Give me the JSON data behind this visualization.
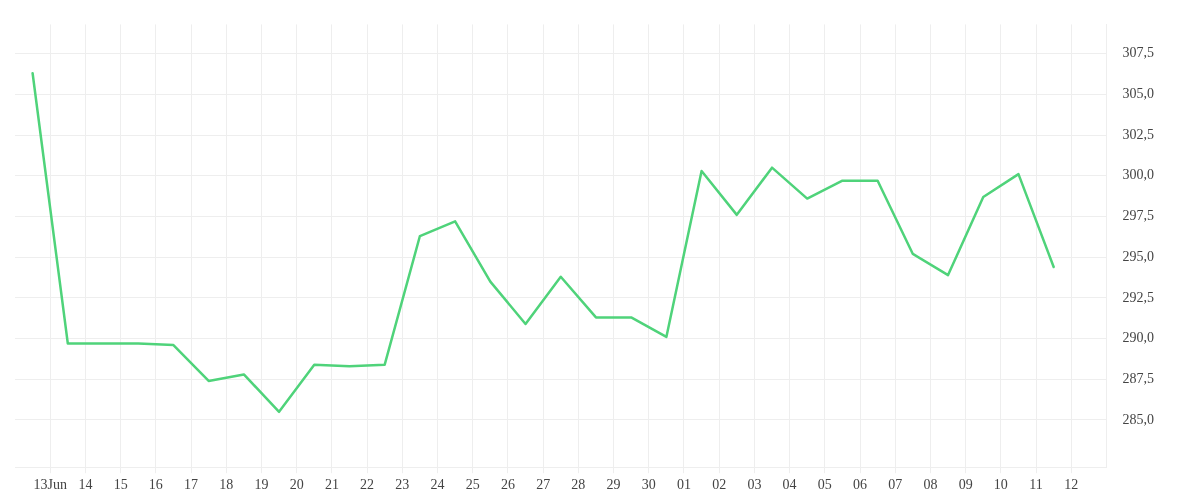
{
  "chart_data": {
    "type": "line",
    "x": [
      "--06-12T12:00",
      "--06-13T12:00",
      "--06-14T12:00",
      "--06-15T12:00",
      "--06-16T12:00",
      "--06-17T12:00",
      "--06-18T12:00",
      "--06-19T12:00",
      "--06-20T12:00",
      "--06-21T12:00",
      "--06-22T12:00",
      "--06-23T12:00",
      "--06-24T12:00",
      "--06-25T12:00",
      "--06-26T12:00",
      "--06-27T12:00",
      "--06-28T12:00",
      "--06-29T12:00",
      "--06-30T12:00",
      "--07-01T12:00",
      "--07-02T12:00",
      "--07-03T12:00",
      "--07-04T12:00",
      "--07-05T12:00",
      "--07-06T12:00",
      "--07-07T12:00",
      "--07-08T12:00",
      "--07-09T12:00",
      "--07-10T12:00",
      "--07-11T12:00"
    ],
    "series": [
      {
        "color": "#4fd37a",
        "values": [
          306.3,
          289.7,
          289.7,
          289.7,
          289.6,
          287.4,
          287.8,
          285.5,
          288.4,
          288.3,
          288.4,
          296.3,
          297.2,
          293.5,
          290.9,
          293.8,
          291.3,
          291.3,
          290.1,
          300.3,
          297.6,
          300.5,
          298.6,
          299.7,
          299.7,
          295.2,
          293.9,
          298.7,
          300.1,
          294.4
        ]
      }
    ],
    "xlim": [
      "--06-12",
      "--07-13"
    ],
    "xticks": [
      {
        "value": "--06-13",
        "label": "13Jun"
      },
      {
        "value": "--06-14",
        "label": "14"
      },
      {
        "value": "--06-15",
        "label": "15"
      },
      {
        "value": "--06-16",
        "label": "16"
      },
      {
        "value": "--06-17",
        "label": "17"
      },
      {
        "value": "--06-18",
        "label": "18"
      },
      {
        "value": "--06-19",
        "label": "19"
      },
      {
        "value": "--06-20",
        "label": "20"
      },
      {
        "value": "--06-21",
        "label": "21"
      },
      {
        "value": "--06-22",
        "label": "22"
      },
      {
        "value": "--06-23",
        "label": "23"
      },
      {
        "value": "--06-24",
        "label": "24"
      },
      {
        "value": "--06-25",
        "label": "25"
      },
      {
        "value": "--06-26",
        "label": "26"
      },
      {
        "value": "--06-27",
        "label": "27"
      },
      {
        "value": "--06-28",
        "label": "28"
      },
      {
        "value": "--06-29",
        "label": "29"
      },
      {
        "value": "--06-30",
        "label": "30"
      },
      {
        "value": "--07-01",
        "label": "01"
      },
      {
        "value": "--07-02",
        "label": "02"
      },
      {
        "value": "--07-03",
        "label": "03"
      },
      {
        "value": "--07-04",
        "label": "04"
      },
      {
        "value": "--07-05",
        "label": "05"
      },
      {
        "value": "--07-06",
        "label": "06"
      },
      {
        "value": "--07-07",
        "label": "07"
      },
      {
        "value": "--07-08",
        "label": "08"
      },
      {
        "value": "--07-09",
        "label": "09"
      },
      {
        "value": "--07-10",
        "label": "10"
      },
      {
        "value": "--07-11",
        "label": "11"
      },
      {
        "value": "--07-12",
        "label": "12"
      }
    ],
    "ylim": [
      282.1,
      309.3
    ],
    "yticks": [
      {
        "value": 285,
        "label": "285,0"
      },
      {
        "value": 287.5,
        "label": "287,5"
      },
      {
        "value": 290,
        "label": "290,0"
      },
      {
        "value": 292.5,
        "label": "292,5"
      },
      {
        "value": 295,
        "label": "295,0"
      },
      {
        "value": 297.5,
        "label": "297,5"
      },
      {
        "value": 300,
        "label": "300,0"
      },
      {
        "value": 302.5,
        "label": "302,5"
      },
      {
        "value": 305,
        "label": "305,0"
      },
      {
        "value": 307.5,
        "label": "307,5"
      }
    ],
    "grid": true,
    "legend": false,
    "marker": "none",
    "line_style": "solid"
  }
}
